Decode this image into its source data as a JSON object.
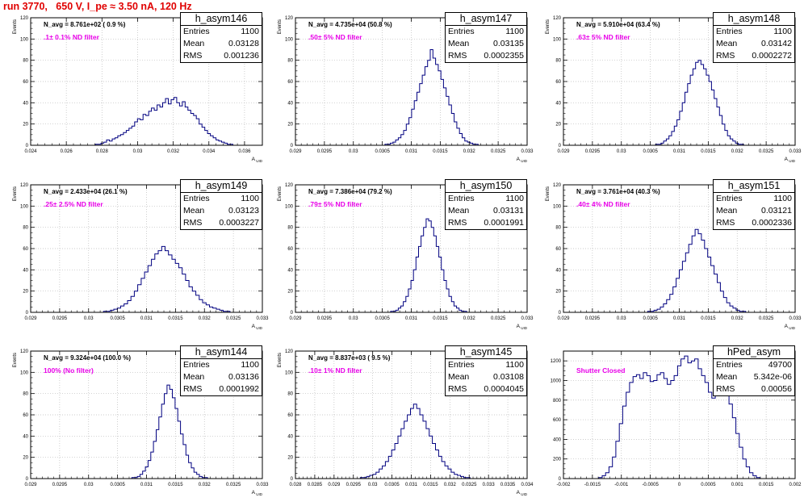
{
  "page": {
    "title": "run 3770,   650 V, I_pe ≈ 3.50 nA, 120 Hz"
  },
  "chart_data": [
    {
      "type": "bar",
      "histogram": "h_asym146",
      "annotation": "N_avg = 8.761e+02 ( 0.9 %)",
      "filter_label": ".1± 0.1% ND filter",
      "ylabel": "Events",
      "xlabel": "A_UID",
      "xlim": [
        0.024,
        0.037
      ],
      "ylim": [
        0,
        120
      ],
      "xticks": [
        0.024,
        0.026,
        0.028,
        0.03,
        0.032,
        0.034,
        0.036
      ],
      "xtick_labels": [
        "0.024",
        "0.026",
        "0.028",
        "0.03",
        "0.032",
        "0.034",
        "0.036"
      ],
      "yticks": [
        0,
        20,
        40,
        60,
        80,
        100,
        120
      ],
      "grid": true,
      "stats": {
        "entries": "1100",
        "mean": "0.03128",
        "rms": "0.001236"
      },
      "bins_lo": 0.027,
      "bins_hi": 0.0355,
      "bin_values": [
        0,
        0,
        0,
        0,
        1,
        1,
        2,
        3,
        5,
        4,
        6,
        7,
        9,
        10,
        12,
        14,
        16,
        18,
        22,
        25,
        24,
        29,
        28,
        32,
        35,
        33,
        38,
        36,
        40,
        44,
        39,
        43,
        45,
        40,
        37,
        41,
        36,
        33,
        30,
        28,
        25,
        20,
        17,
        14,
        11,
        9,
        7,
        5,
        4,
        3,
        2,
        1,
        1,
        0
      ]
    },
    {
      "type": "bar",
      "histogram": "h_asym147",
      "annotation": "N_avg = 4.735e+04 (50.8 %)",
      "filter_label": ".50± 5% ND filter",
      "ylabel": "Events",
      "xlabel": "A_UID",
      "xlim": [
        0.029,
        0.033
      ],
      "ylim": [
        0,
        120
      ],
      "xticks": [
        0.029,
        0.0295,
        0.03,
        0.0305,
        0.031,
        0.0315,
        0.032,
        0.0325,
        0.033
      ],
      "xtick_labels": [
        "0.029",
        "0.0295",
        "0.03",
        "0.0305",
        "0.031",
        "0.0315",
        "0.032",
        "0.0325",
        "0.033"
      ],
      "yticks": [
        0,
        20,
        40,
        60,
        80,
        100,
        120
      ],
      "grid": true,
      "stats": {
        "entries": "1100",
        "mean": "0.03135",
        "rms": "0.0002355"
      },
      "bins_lo": 0.0305,
      "bins_hi": 0.0322,
      "bin_values": [
        0,
        1,
        1,
        2,
        3,
        5,
        7,
        10,
        14,
        20,
        26,
        34,
        42,
        50,
        58,
        66,
        74,
        80,
        90,
        82,
        76,
        70,
        62,
        54,
        46,
        38,
        30,
        22,
        16,
        11,
        7,
        4,
        3,
        2,
        1,
        1,
        0
      ]
    },
    {
      "type": "bar",
      "histogram": "h_asym148",
      "annotation": "N_avg = 5.910e+04 (63.4 %)",
      "filter_label": ".63± 5% ND filter",
      "ylabel": "Events",
      "xlabel": "A_UID",
      "xlim": [
        0.029,
        0.033
      ],
      "ylim": [
        0,
        120
      ],
      "xticks": [
        0.029,
        0.0295,
        0.03,
        0.0305,
        0.031,
        0.0315,
        0.032,
        0.0325,
        0.033
      ],
      "xtick_labels": [
        "0.029",
        "0.0295",
        "0.03",
        "0.0305",
        "0.031",
        "0.0315",
        "0.032",
        "0.0325",
        "0.033"
      ],
      "yticks": [
        0,
        20,
        40,
        60,
        80,
        100,
        120
      ],
      "grid": true,
      "stats": {
        "entries": "1100",
        "mean": "0.03142",
        "rms": "0.0002272"
      },
      "bins_lo": 0.0305,
      "bins_hi": 0.0322,
      "bin_values": [
        0,
        0,
        1,
        1,
        2,
        4,
        6,
        9,
        13,
        18,
        24,
        32,
        40,
        50,
        58,
        66,
        72,
        78,
        80,
        76,
        72,
        66,
        60,
        52,
        44,
        36,
        28,
        20,
        14,
        9,
        6,
        4,
        2,
        1,
        1,
        0,
        0
      ]
    },
    {
      "type": "bar",
      "histogram": "h_asym149",
      "annotation": "N_avg = 2.433e+04 (26.1 %)",
      "filter_label": ".25± 2.5% ND filter",
      "ylabel": "Events",
      "xlabel": "A_UID",
      "xlim": [
        0.029,
        0.033
      ],
      "ylim": [
        0,
        120
      ],
      "xticks": [
        0.029,
        0.0295,
        0.03,
        0.0305,
        0.031,
        0.0315,
        0.032,
        0.0325,
        0.033
      ],
      "xtick_labels": [
        "0.029",
        "0.0295",
        "0.03",
        "0.0305",
        "0.031",
        "0.0315",
        "0.032",
        "0.0325",
        "0.033"
      ],
      "yticks": [
        0,
        20,
        40,
        60,
        80,
        100,
        120
      ],
      "grid": true,
      "stats": {
        "entries": "1100",
        "mean": "0.03123",
        "rms": "0.0003227"
      },
      "bins_lo": 0.0302,
      "bins_hi": 0.0325,
      "bin_values": [
        0,
        1,
        1,
        2,
        3,
        4,
        6,
        8,
        11,
        15,
        20,
        26,
        32,
        38,
        44,
        50,
        55,
        58,
        62,
        58,
        54,
        50,
        46,
        42,
        36,
        30,
        24,
        20,
        16,
        12,
        9,
        7,
        5,
        4,
        3,
        2,
        1,
        1,
        0
      ]
    },
    {
      "type": "bar",
      "histogram": "h_asym150",
      "annotation": "N_avg = 7.386e+04 (79.2 %)",
      "filter_label": ".79± 5% ND filter",
      "ylabel": "Events",
      "xlabel": "A_UID",
      "xlim": [
        0.029,
        0.033
      ],
      "ylim": [
        0,
        120
      ],
      "xticks": [
        0.029,
        0.0295,
        0.03,
        0.0305,
        0.031,
        0.0315,
        0.032,
        0.0325,
        0.033
      ],
      "xtick_labels": [
        "0.029",
        "0.0295",
        "0.03",
        "0.0305",
        "0.031",
        "0.0315",
        "0.032",
        "0.0325",
        "0.033"
      ],
      "yticks": [
        0,
        20,
        40,
        60,
        80,
        100,
        120
      ],
      "grid": true,
      "stats": {
        "entries": "1100",
        "mean": "0.03131",
        "rms": "0.0001991"
      },
      "bins_lo": 0.0306,
      "bins_hi": 0.032,
      "bin_values": [
        0,
        1,
        1,
        2,
        4,
        6,
        10,
        15,
        22,
        30,
        40,
        52,
        62,
        72,
        80,
        88,
        86,
        80,
        72,
        62,
        52,
        40,
        30,
        22,
        15,
        10,
        6,
        4,
        2,
        1,
        1,
        0
      ]
    },
    {
      "type": "bar",
      "histogram": "h_asym151",
      "annotation": "N_avg = 3.761e+04 (40.3 %)",
      "filter_label": ".40± 4% ND filter",
      "ylabel": "Events",
      "xlabel": "A_UID",
      "xlim": [
        0.029,
        0.033
      ],
      "ylim": [
        0,
        120
      ],
      "xticks": [
        0.029,
        0.0295,
        0.03,
        0.0305,
        0.031,
        0.0315,
        0.032,
        0.0325,
        0.033
      ],
      "xtick_labels": [
        "0.029",
        "0.0295",
        "0.03",
        "0.0305",
        "0.031",
        "0.0315",
        "0.032",
        "0.0325",
        "0.033"
      ],
      "yticks": [
        0,
        20,
        40,
        60,
        80,
        100,
        120
      ],
      "grid": true,
      "stats": {
        "entries": "1100",
        "mean": "0.03121",
        "rms": "0.0002336"
      },
      "bins_lo": 0.0304,
      "bins_hi": 0.0322,
      "bin_values": [
        0,
        1,
        1,
        2,
        3,
        5,
        8,
        12,
        17,
        24,
        32,
        40,
        48,
        56,
        64,
        72,
        78,
        74,
        68,
        60,
        52,
        44,
        36,
        28,
        20,
        14,
        9,
        6,
        4,
        2,
        1,
        1,
        0
      ]
    },
    {
      "type": "bar",
      "histogram": "h_asym144",
      "annotation": "N_avg = 9.324e+04 (100.0 %)",
      "filter_label": "100% (No filter)",
      "ylabel": "Events",
      "xlabel": "A_UID",
      "xlim": [
        0.029,
        0.033
      ],
      "ylim": [
        0,
        120
      ],
      "xticks": [
        0.029,
        0.0295,
        0.03,
        0.0305,
        0.031,
        0.0315,
        0.032,
        0.0325,
        0.033
      ],
      "xtick_labels": [
        "0.029",
        "0.0295",
        "0.03",
        "0.0305",
        "0.031",
        "0.0315",
        "0.032",
        "0.0325",
        "0.033"
      ],
      "yticks": [
        0,
        20,
        40,
        60,
        80,
        100,
        120
      ],
      "grid": true,
      "stats": {
        "entries": "1100",
        "mean": "0.03136",
        "rms": "0.0001992"
      },
      "bins_lo": 0.0307,
      "bins_hi": 0.0321,
      "bin_values": [
        0,
        1,
        1,
        2,
        4,
        7,
        11,
        17,
        25,
        35,
        46,
        58,
        70,
        80,
        88,
        84,
        76,
        66,
        54,
        42,
        32,
        22,
        15,
        10,
        6,
        4,
        2,
        1,
        1,
        0
      ]
    },
    {
      "type": "bar",
      "histogram": "h_asym145",
      "annotation": "N_avg = 8.837e+03 ( 9.5 %)",
      "filter_label": ".10± 1% ND filter",
      "ylabel": "Events",
      "xlabel": "A_UID",
      "xlim": [
        0.028,
        0.034
      ],
      "ylim": [
        0,
        120
      ],
      "xticks": [
        0.028,
        0.0285,
        0.029,
        0.0295,
        0.03,
        0.0305,
        0.031,
        0.0315,
        0.032,
        0.0325,
        0.033,
        0.0335,
        0.034
      ],
      "xtick_labels": [
        "0.028",
        "0.0285",
        "0.029",
        "0.0295",
        "0.03",
        "0.0305",
        "0.031",
        "0.0315",
        "0.032",
        "0.0325",
        "0.033",
        "0.0335",
        "0.034"
      ],
      "yticks": [
        0,
        20,
        40,
        60,
        80,
        100,
        120
      ],
      "grid": true,
      "stats": {
        "entries": "1100",
        "mean": "0.03108",
        "rms": "0.0004045"
      },
      "bins_lo": 0.0296,
      "bins_hi": 0.0326,
      "bin_values": [
        0,
        1,
        1,
        2,
        3,
        4,
        6,
        9,
        12,
        16,
        21,
        27,
        33,
        40,
        47,
        54,
        60,
        66,
        70,
        66,
        60,
        54,
        47,
        40,
        33,
        27,
        21,
        16,
        12,
        9,
        6,
        4,
        3,
        2,
        1,
        1,
        0
      ]
    },
    {
      "type": "bar",
      "histogram": "hPed_asym",
      "annotation": "",
      "filter_label": "Shutter Closed",
      "ylabel": "",
      "xlabel": "",
      "xlim": [
        -0.002,
        0.002
      ],
      "ylim": [
        0,
        1300
      ],
      "xticks": [
        -0.002,
        -0.0015,
        -0.001,
        -0.0005,
        0,
        0.0005,
        0.001,
        0.0015,
        0.002
      ],
      "xtick_labels": [
        "-0.002",
        "-0.0015",
        "-0.001",
        "-0.0005",
        "0",
        "0.0005",
        "0.001",
        "0.0015",
        "0.002"
      ],
      "yticks": [
        0,
        200,
        400,
        600,
        800,
        1000,
        1200
      ],
      "grid": true,
      "stats": {
        "entries": "49700",
        "mean": "5.342e-06",
        "rms": "0.00056"
      },
      "bins_lo": -0.00145,
      "bins_hi": 0.00145,
      "bin_values": [
        0,
        10,
        30,
        60,
        120,
        220,
        380,
        560,
        740,
        880,
        980,
        1040,
        1060,
        1020,
        1080,
        1050,
        990,
        1000,
        1060,
        1080,
        1020,
        960,
        1000,
        1050,
        1150,
        1220,
        1250,
        1180,
        1200,
        1220,
        1120,
        1050,
        980,
        880,
        820,
        860,
        900,
        940,
        880,
        760,
        620,
        460,
        320,
        200,
        120,
        60,
        30,
        10,
        0
      ]
    }
  ]
}
